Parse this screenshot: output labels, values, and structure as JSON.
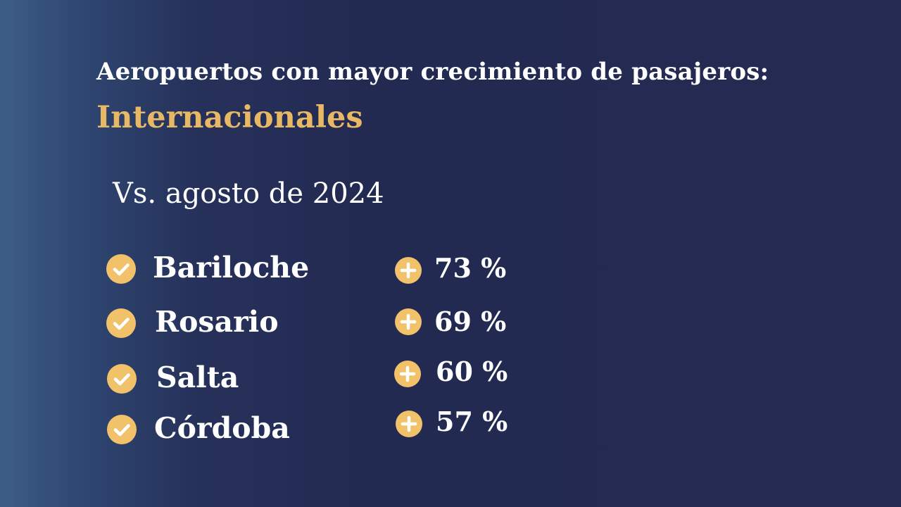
{
  "slide": {
    "title": "Aeropuertos con mayor crecimiento de pasajeros:",
    "subtitle": "Internacionales",
    "comparison": "Vs. agosto de 2024"
  },
  "colors": {
    "accent": "#f2c26b",
    "subtitle": "#e8b865",
    "text": "#ffffff",
    "background_dark": "#242a51",
    "background_light": "#3d5d87"
  },
  "airports": [
    {
      "name": "Bariloche",
      "growth": "73 %"
    },
    {
      "name": "Rosario",
      "growth": "69 %"
    },
    {
      "name": "Salta",
      "growth": "60 %"
    },
    {
      "name": "Córdoba",
      "growth": "57 %"
    }
  ],
  "icons": {
    "bullet": "check-circle-icon",
    "growth": "plus-circle-icon"
  }
}
